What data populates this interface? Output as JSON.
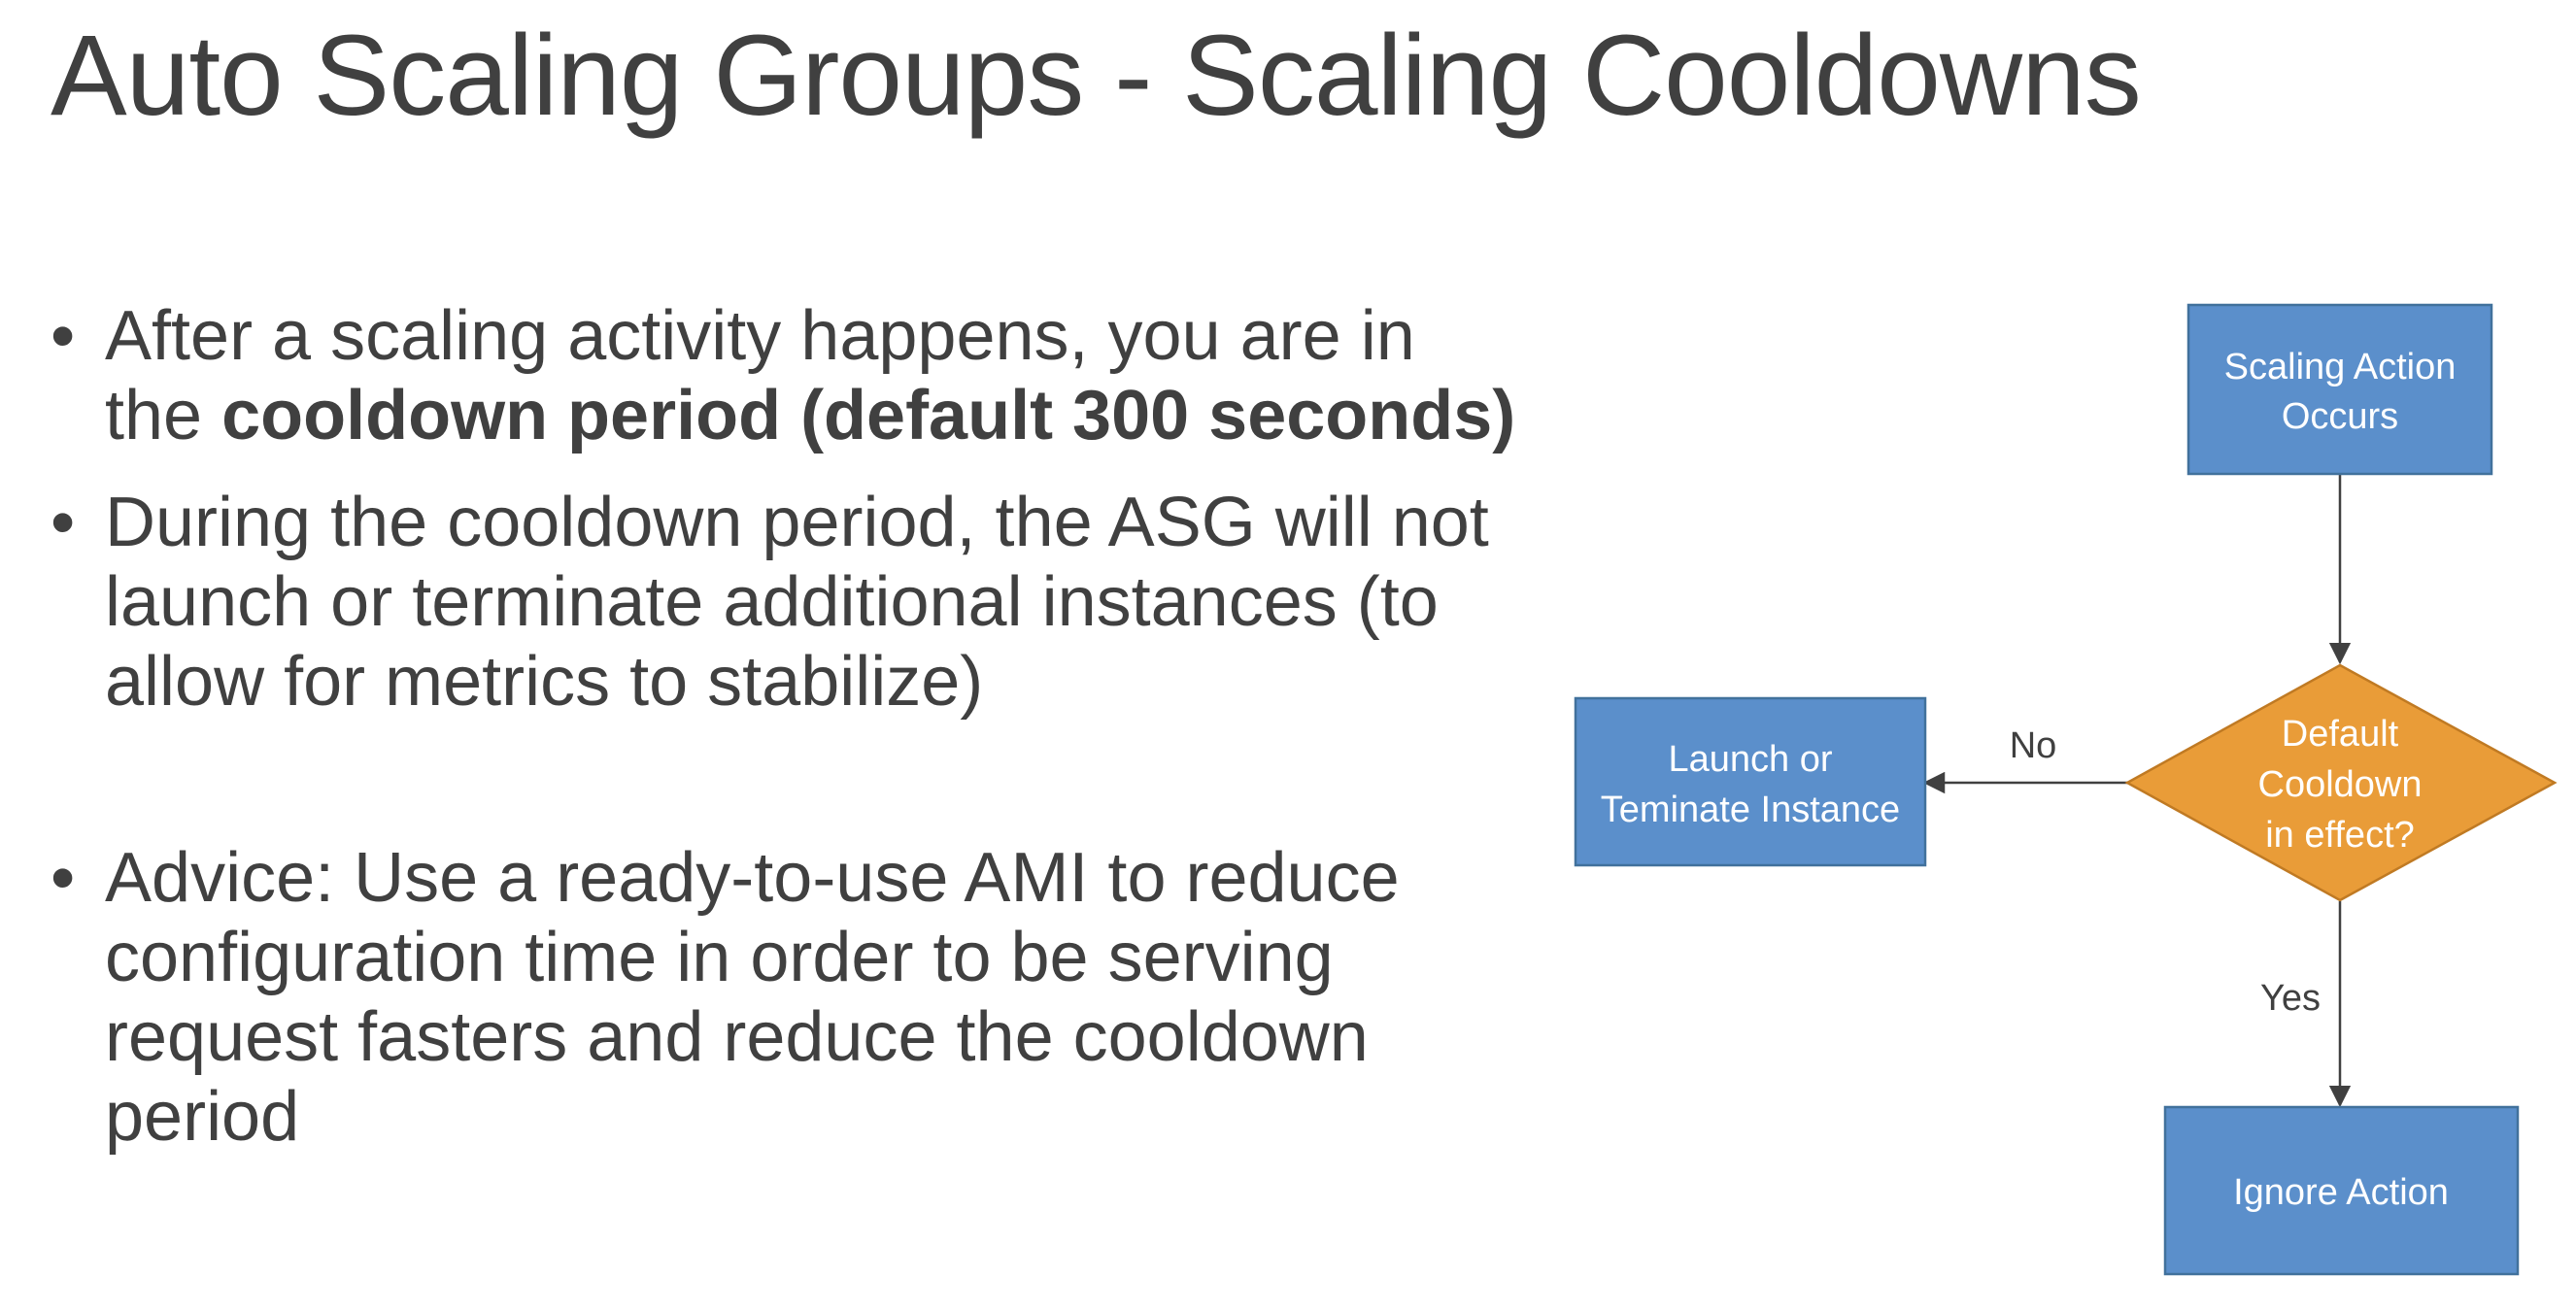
{
  "slide": {
    "title": "Auto Scaling Groups - Scaling Cooldowns",
    "bullets": [
      {
        "prefix": "After a scaling activity happens, you are in the ",
        "bold": "cooldown period (default 300 seconds)",
        "suffix": ""
      },
      {
        "prefix": "During the cooldown period, the ASG will not launch or terminate additional instances (to allow for metrics to stabilize)",
        "bold": "",
        "suffix": ""
      },
      {
        "prefix": "Advice: Use a ready-to-use AMI to reduce configuration time in order to be serving request fasters and reduce the cooldown period",
        "bold": "",
        "suffix": ""
      }
    ]
  },
  "flowchart": {
    "colors": {
      "box_fill": "#5b8fcb",
      "box_stroke": "#41719c",
      "diamond_fill": "#e99c38",
      "diamond_stroke": "#c07a23",
      "arrow": "#404040",
      "node_text": "#ffffff"
    },
    "nodes": {
      "start": {
        "line1": "Scaling Action",
        "line2": "Occurs"
      },
      "decision": {
        "line1": "Default",
        "line2": "Cooldown",
        "line3": "in effect?"
      },
      "no_action": {
        "line1": "Launch or",
        "line2": "Teminate Instance"
      },
      "yes_action": {
        "line1": "Ignore Action"
      }
    },
    "edges": {
      "no_label": "No",
      "yes_label": "Yes"
    }
  }
}
